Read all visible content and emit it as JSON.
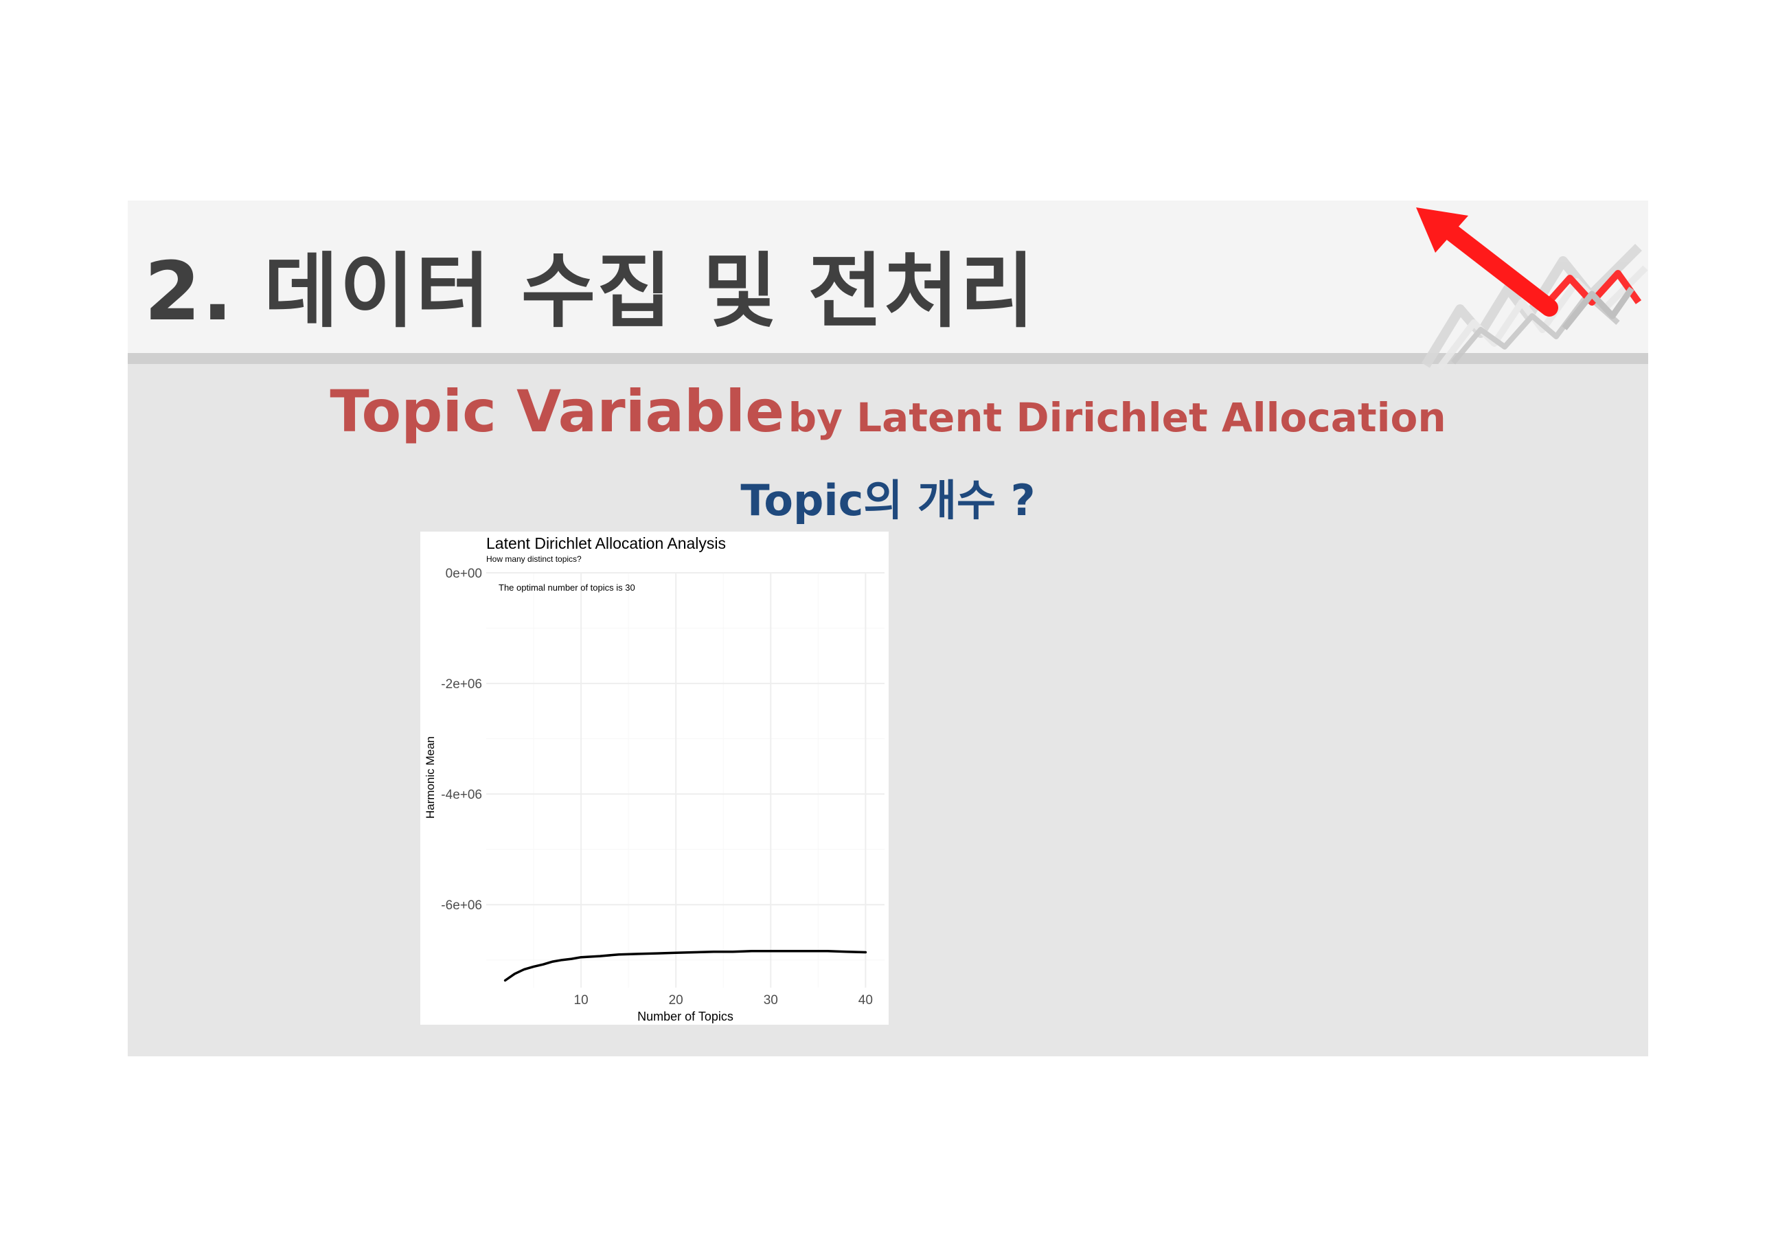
{
  "slide": {
    "title": "2. 데이터 수집 및 전처리",
    "heading_main": "Topic Variable",
    "heading_sub": "by Latent Dirichlet Allocation",
    "subheading": "Topic의 개수 ?",
    "colors": {
      "heading": "#c0504d",
      "subheading": "#1f497d",
      "title": "#404040",
      "arrow": "#ff1a1a"
    },
    "decoration_icon": "red-arrow-growth-chart-icon"
  },
  "chart_data": {
    "type": "line",
    "title": "Latent Dirichlet Allocation Analysis",
    "subtitle": "How many distinct topics?",
    "annotation": "The optimal number of topics is 30",
    "xlabel": "Number of Topics",
    "ylabel": "Harmonic Mean",
    "xlim": [
      0,
      42
    ],
    "ylim": [
      -7500000,
      0
    ],
    "x_ticks": [
      10,
      20,
      30,
      40
    ],
    "x_tick_labels": [
      "10",
      "20",
      "30",
      "40"
    ],
    "y_ticks": [
      0,
      -2000000,
      -4000000,
      -6000000
    ],
    "y_tick_labels": [
      "0e+00",
      "-2e+06",
      "-4e+06",
      "-6e+06"
    ],
    "grid": true,
    "legend": "none",
    "series": [
      {
        "color": "#000000",
        "x": [
          2,
          3,
          4,
          5,
          6,
          7,
          8,
          9,
          10,
          12,
          14,
          16,
          18,
          20,
          22,
          24,
          26,
          28,
          30,
          32,
          34,
          36,
          38,
          40
        ],
        "y": [
          -7370000,
          -7250000,
          -7170000,
          -7120000,
          -7080000,
          -7030000,
          -7000000,
          -6980000,
          -6950000,
          -6930000,
          -6900000,
          -6890000,
          -6880000,
          -6870000,
          -6860000,
          -6850000,
          -6850000,
          -6840000,
          -6840000,
          -6840000,
          -6840000,
          -6840000,
          -6850000,
          -6860000
        ]
      }
    ]
  }
}
